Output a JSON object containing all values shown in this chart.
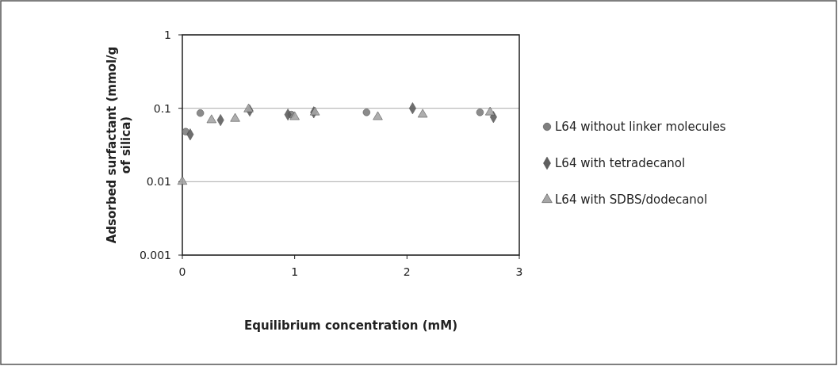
{
  "chart_data": {
    "type": "scatter",
    "xlabel": "Equilibrium concentration (mM)",
    "ylabel": "Adsorbed surfactant (mmol/g of silica)",
    "log": "y",
    "grid": "y",
    "legend": "right",
    "xlim": [
      0,
      3
    ],
    "xticks": [
      0,
      1,
      2,
      3
    ],
    "ylim": [
      0.001,
      1
    ],
    "yticks": [
      0.001,
      0.01,
      0.1,
      1
    ],
    "series": [
      {
        "name": "L64 without linker molecules",
        "color": "#7f7f7f",
        "marker": "circle",
        "x": [
          0.03,
          0.16,
          0.97,
          1.64,
          2.65
        ],
        "values": [
          0.048,
          0.086,
          0.082,
          0.088,
          0.088
        ]
      },
      {
        "name": "L64 with tetradecanol",
        "color": "#5f5f5f",
        "marker": "diamond",
        "x": [
          0.07,
          0.34,
          0.6,
          0.94,
          1.17,
          2.05,
          2.77
        ],
        "values": [
          0.044,
          0.069,
          0.093,
          0.082,
          0.088,
          0.1,
          0.076
        ]
      },
      {
        "name": "L64 with SDBS/dodecanol",
        "color": "#a6a6a6",
        "marker": "triangle",
        "x": [
          0.0,
          0.26,
          0.47,
          0.59,
          1.0,
          1.18,
          1.74,
          2.14,
          2.74
        ],
        "values": [
          0.01,
          0.069,
          0.072,
          0.097,
          0.076,
          0.088,
          0.076,
          0.082,
          0.088
        ]
      }
    ]
  }
}
